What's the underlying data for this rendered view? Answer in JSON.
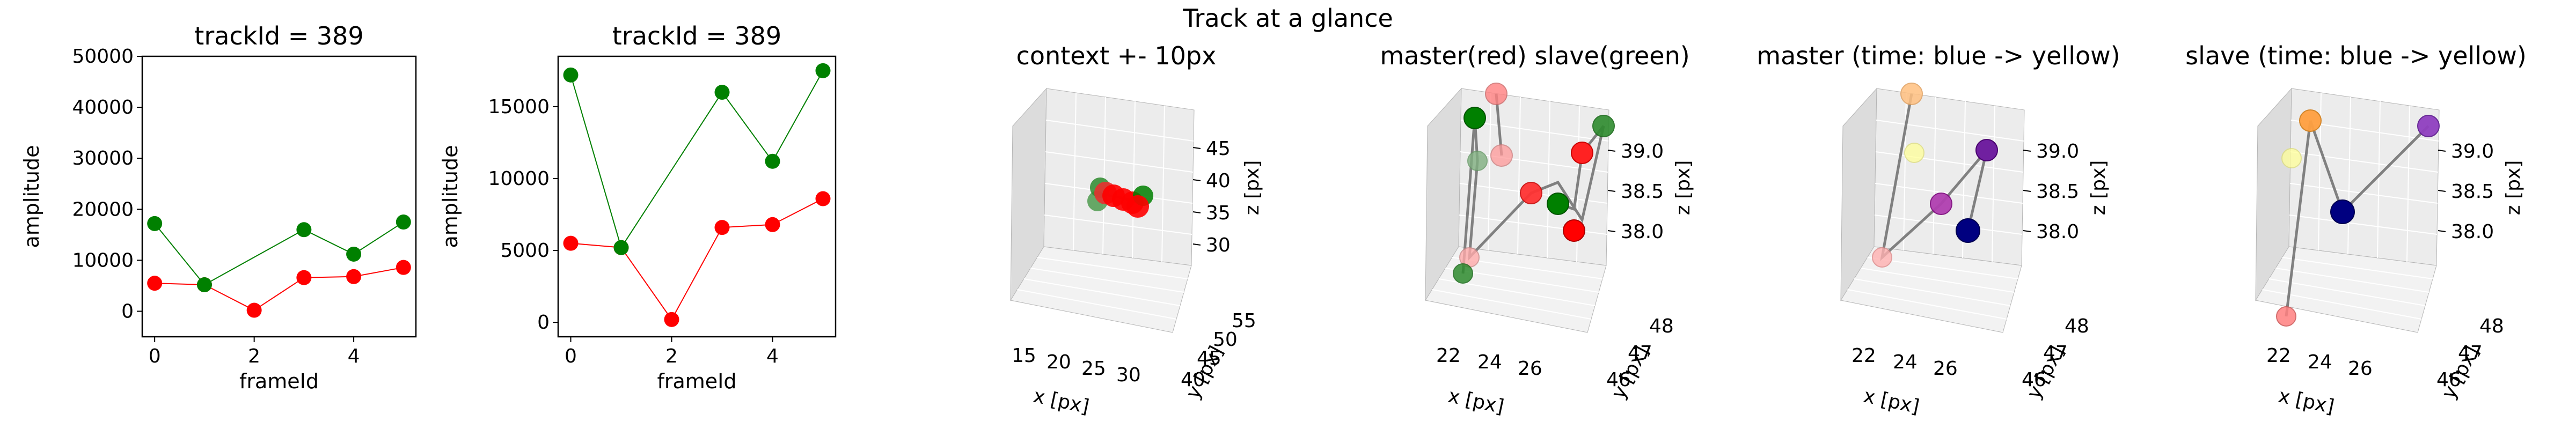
{
  "figure": {
    "suptitle": "Track at a glance"
  },
  "colors": {
    "red": "#ff0000",
    "green": "#008000",
    "line_red": "#ff0000",
    "line_green": "#008000",
    "track_line": "#808080"
  },
  "chart_data": [
    {
      "type": "line",
      "title": "trackId = 389",
      "xlabel": "frameId",
      "ylabel": "amplitude",
      "xlim": [
        -0.25,
        5.25
      ],
      "ylim": [
        -5000,
        50000
      ],
      "x_ticks": [
        "0",
        "2",
        "4"
      ],
      "y_ticks": [
        "0",
        "10000",
        "20000",
        "30000",
        "40000",
        "50000"
      ],
      "series": [
        {
          "color": "#ff0000",
          "x": [
            0,
            1,
            2,
            3,
            4,
            5
          ],
          "values": [
            5500,
            5200,
            200,
            6600,
            6800,
            8600
          ]
        },
        {
          "color": "#008000",
          "x": [
            0,
            1,
            3,
            4,
            5
          ],
          "values": [
            17200,
            5200,
            16000,
            11200,
            17500
          ]
        }
      ]
    },
    {
      "type": "line",
      "title": "trackId = 389",
      "xlabel": "frameId",
      "ylabel": "amplitude",
      "xlim": [
        -0.25,
        5.25
      ],
      "ylim": [
        -1000,
        18500
      ],
      "x_ticks": [
        "0",
        "2",
        "4"
      ],
      "y_ticks": [
        "0",
        "5000",
        "10000",
        "15000"
      ],
      "series": [
        {
          "color": "#ff0000",
          "x": [
            0,
            1,
            2,
            3,
            4,
            5
          ],
          "values": [
            5500,
            5200,
            200,
            6600,
            6800,
            8600
          ]
        },
        {
          "color": "#008000",
          "x": [
            0,
            1,
            3,
            4,
            5
          ],
          "values": [
            17200,
            5200,
            16000,
            11200,
            17500
          ]
        }
      ]
    },
    {
      "type": "scatter",
      "title": "context +- 10px",
      "xlabel": "x [px]",
      "ylabel": "y [px]",
      "zlabel": "z [px]",
      "x_ticks": [
        "15",
        "20",
        "25",
        "30"
      ],
      "y_ticks": [
        "40",
        "45",
        "50",
        "55"
      ],
      "z_ticks": [
        "30",
        "35",
        "40",
        "45"
      ]
    },
    {
      "type": "scatter",
      "title": "master(red) slave(green)",
      "xlabel": "x [px]",
      "ylabel": "y [px]",
      "zlabel": "z [px]",
      "x_ticks": [
        "22",
        "24",
        "26"
      ],
      "y_ticks": [
        "46",
        "47",
        "48"
      ],
      "z_ticks": [
        "38.0",
        "38.5",
        "39.0"
      ]
    },
    {
      "type": "scatter",
      "title": "master (time: blue -> yellow)",
      "xlabel": "x [px]",
      "ylabel": "y [px]",
      "zlabel": "z [px]",
      "x_ticks": [
        "22",
        "24",
        "26"
      ],
      "y_ticks": [
        "46",
        "47",
        "48"
      ],
      "z_ticks": [
        "38.0",
        "38.5",
        "39.0"
      ]
    },
    {
      "type": "scatter",
      "title": "slave (time: blue -> yellow)",
      "xlabel": "x [px]",
      "ylabel": "y [px]",
      "zlabel": "z [px]",
      "x_ticks": [
        "22",
        "24",
        "26"
      ],
      "y_ticks": [
        "46",
        "47",
        "48"
      ],
      "z_ticks": [
        "38.0",
        "38.5",
        "39.0"
      ]
    }
  ]
}
